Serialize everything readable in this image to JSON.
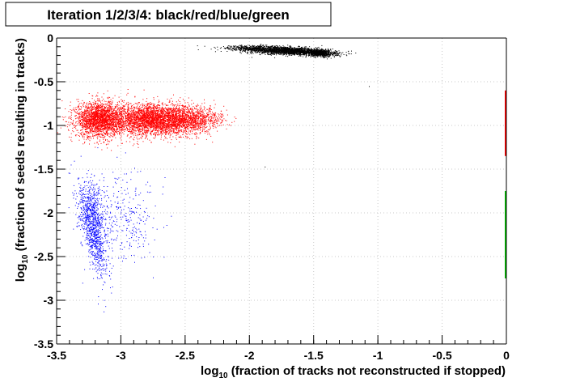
{
  "chart_data": {
    "type": "scatter",
    "title": "Iteration 1/2/3/4: black/red/blue/green",
    "xlabel": {
      "prefix": "log",
      "sub": "10",
      "suffix": " (fraction of tracks not reconstructed if stopped)"
    },
    "ylabel": {
      "prefix": "log",
      "sub": "10",
      "suffix": " (fraction of seeds resulting in tracks)"
    },
    "xlim": [
      -3.5,
      0
    ],
    "ylim": [
      -3.5,
      0
    ],
    "x_ticks": [
      {
        "value": -3.5,
        "label": "-3.5"
      },
      {
        "value": -3,
        "label": "-3"
      },
      {
        "value": -2.5,
        "label": "-2.5"
      },
      {
        "value": -2,
        "label": "-2"
      },
      {
        "value": -1.5,
        "label": "-1.5"
      },
      {
        "value": -1,
        "label": "-1"
      },
      {
        "value": -0.5,
        "label": "-0.5"
      },
      {
        "value": 0,
        "label": "0"
      }
    ],
    "y_ticks": [
      {
        "value": 0,
        "label": "0"
      },
      {
        "value": -0.5,
        "label": "-0.5"
      },
      {
        "value": -1,
        "label": "-1"
      },
      {
        "value": -1.5,
        "label": "-1.5"
      },
      {
        "value": -2,
        "label": "-2"
      },
      {
        "value": -2.5,
        "label": "-2.5"
      },
      {
        "value": -3,
        "label": "-3"
      },
      {
        "value": -3.5,
        "label": "-3.5"
      }
    ],
    "grid": true,
    "colors": {
      "black": "#000000",
      "red": "#ff0000",
      "blue": "#0000ff",
      "green": "#00c000"
    },
    "series": [
      {
        "color": "black",
        "clusters": [
          {
            "xc": -1.72,
            "yc": -0.14,
            "sx": 0.17,
            "sy": 0.025,
            "rho": -0.45,
            "n": 2200
          },
          {
            "xc": -1.45,
            "yc": -0.17,
            "sx": 0.06,
            "sy": 0.02,
            "rho": -0.3,
            "n": 600
          },
          {
            "xc": -2.05,
            "yc": -0.11,
            "sx": 0.1,
            "sy": 0.012,
            "rho": 0,
            "n": 150
          }
        ],
        "points": [
          [
            -2.4,
            -0.13
          ],
          [
            -1.07,
            -0.55
          ],
          [
            -1.88,
            -1.47
          ]
        ]
      },
      {
        "color": "red",
        "clusters": [
          {
            "xc": -3.17,
            "yc": -0.93,
            "sx": 0.09,
            "sy": 0.1,
            "rho": 0,
            "n": 2200
          },
          {
            "xc": -2.75,
            "yc": -0.93,
            "sx": 0.17,
            "sy": 0.09,
            "rho": 0,
            "n": 3200
          },
          {
            "xc": -2.45,
            "yc": -0.93,
            "sx": 0.12,
            "sy": 0.07,
            "rho": 0,
            "n": 900
          }
        ],
        "points": [
          [
            -2.12,
            -0.95
          ],
          [
            -2.18,
            -0.82
          ]
        ],
        "edge_segment": {
          "x": 0,
          "y": [
            -1.35,
            -0.6
          ]
        }
      },
      {
        "color": "blue",
        "clusters": [
          {
            "xc": -3.22,
            "yc": -2.0,
            "sx": 0.06,
            "sy": 0.2,
            "rho": -0.3,
            "n": 650
          },
          {
            "xc": -3.2,
            "yc": -2.35,
            "sx": 0.05,
            "sy": 0.22,
            "rho": -0.7,
            "n": 450
          },
          {
            "xc": -2.95,
            "yc": -2.05,
            "sx": 0.12,
            "sy": 0.25,
            "rho": -0.2,
            "n": 260
          }
        ],
        "points": [
          [
            -3.05,
            -1.6
          ],
          [
            -2.85,
            -1.52
          ],
          [
            -3.3,
            -2.8
          ],
          [
            -2.75,
            -2.5
          ],
          [
            -3.15,
            -1.55
          ]
        ]
      },
      {
        "color": "green",
        "clusters": [],
        "points": [],
        "edge_segment": {
          "x": 0,
          "y": [
            -2.75,
            -1.75
          ]
        }
      }
    ]
  }
}
